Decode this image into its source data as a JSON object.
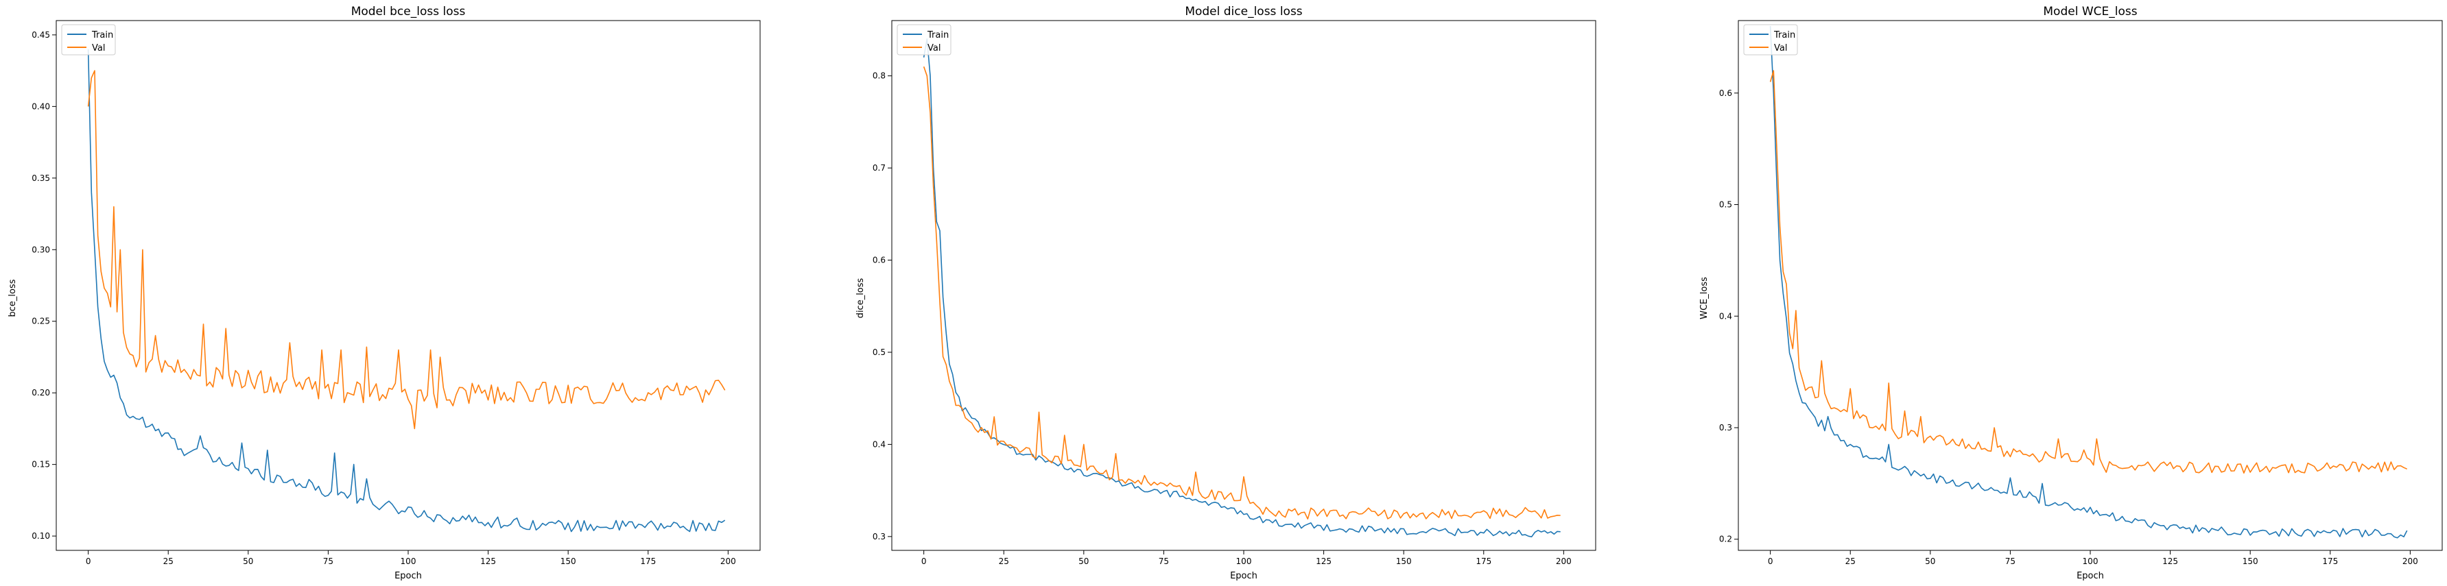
{
  "colors": {
    "train": "#1f77b4",
    "val": "#ff7f0e",
    "axis": "#000000",
    "legend_border": "#cccccc"
  },
  "chart_data": [
    {
      "type": "line",
      "title": "Model bce_loss loss",
      "xlabel": "Epoch",
      "ylabel": "bce_loss",
      "xlim": [
        -10,
        210
      ],
      "ylim": [
        0.09,
        0.46
      ],
      "xticks": [
        0,
        25,
        50,
        75,
        100,
        125,
        150,
        175,
        200
      ],
      "yticks": [
        0.1,
        0.15,
        0.2,
        0.25,
        0.3,
        0.35,
        0.4,
        0.45
      ],
      "ytick_labels": [
        "0.10",
        "0.15",
        "0.20",
        "0.25",
        "0.30",
        "0.35",
        "0.40",
        "0.45"
      ],
      "legend": {
        "placement": "upper-left",
        "entries": [
          "Train",
          "Val"
        ]
      },
      "series": [
        {
          "name": "Train",
          "anchors": [
            [
              0,
              0.44
            ],
            [
              1,
              0.34
            ],
            [
              2,
              0.3
            ],
            [
              3,
              0.26
            ],
            [
              4,
              0.235
            ],
            [
              6,
              0.213
            ],
            [
              8,
              0.21
            ],
            [
              10,
              0.2
            ],
            [
              12,
              0.185
            ],
            [
              15,
              0.183
            ],
            [
              20,
              0.175
            ],
            [
              25,
              0.168
            ],
            [
              30,
              0.16
            ],
            [
              35,
              0.16
            ],
            [
              40,
              0.152
            ],
            [
              45,
              0.15
            ],
            [
              50,
              0.145
            ],
            [
              55,
              0.143
            ],
            [
              60,
              0.14
            ],
            [
              65,
              0.138
            ],
            [
              70,
              0.135
            ],
            [
              75,
              0.13
            ],
            [
              80,
              0.13
            ],
            [
              85,
              0.125
            ],
            [
              90,
              0.122
            ],
            [
              95,
              0.12
            ],
            [
              100,
              0.118
            ],
            [
              110,
              0.113
            ],
            [
              125,
              0.11
            ],
            [
              150,
              0.107
            ],
            [
              175,
              0.107
            ],
            [
              199,
              0.107
            ]
          ],
          "noise": 0.004,
          "spikes": [
            [
              17,
              0.183
            ],
            [
              25,
              0.172
            ],
            [
              35,
              0.17
            ],
            [
              48,
              0.165
            ],
            [
              56,
              0.16
            ],
            [
              77,
              0.158
            ],
            [
              83,
              0.15
            ],
            [
              87,
              0.14
            ]
          ]
        },
        {
          "name": "Val",
          "anchors": [
            [
              0,
              0.4
            ],
            [
              1,
              0.42
            ],
            [
              2,
              0.37
            ],
            [
              3,
              0.31
            ],
            [
              4,
              0.28
            ],
            [
              6,
              0.27
            ],
            [
              8,
              0.26
            ],
            [
              10,
              0.245
            ],
            [
              12,
              0.23
            ],
            [
              15,
              0.225
            ],
            [
              20,
              0.22
            ],
            [
              25,
              0.218
            ],
            [
              30,
              0.215
            ],
            [
              40,
              0.21
            ],
            [
              50,
              0.21
            ],
            [
              60,
              0.205
            ],
            [
              70,
              0.203
            ],
            [
              80,
              0.2
            ],
            [
              90,
              0.2
            ],
            [
              100,
              0.198
            ],
            [
              110,
              0.196
            ],
            [
              125,
              0.2
            ],
            [
              150,
              0.2
            ],
            [
              175,
              0.2
            ],
            [
              199,
              0.201
            ]
          ],
          "noise": 0.008,
          "spikes": [
            [
              2,
              0.425
            ],
            [
              8,
              0.33
            ],
            [
              10,
              0.3
            ],
            [
              17,
              0.3
            ],
            [
              21,
              0.24
            ],
            [
              36,
              0.248
            ],
            [
              43,
              0.245
            ],
            [
              63,
              0.235
            ],
            [
              73,
              0.23
            ],
            [
              79,
              0.23
            ],
            [
              87,
              0.232
            ],
            [
              97,
              0.23
            ],
            [
              102,
              0.175
            ],
            [
              107,
              0.23
            ],
            [
              110,
              0.225
            ]
          ]
        }
      ]
    },
    {
      "type": "line",
      "title": "Model dice_loss loss",
      "xlabel": "Epoch",
      "ylabel": "dice_loss",
      "xlim": [
        -10,
        210
      ],
      "ylim": [
        0.285,
        0.86
      ],
      "xticks": [
        0,
        25,
        50,
        75,
        100,
        125,
        150,
        175,
        200
      ],
      "yticks": [
        0.3,
        0.4,
        0.5,
        0.6,
        0.7,
        0.8
      ],
      "ytick_labels": [
        "0.3",
        "0.4",
        "0.5",
        "0.6",
        "0.7",
        "0.8"
      ],
      "legend": {
        "placement": "upper-left",
        "entries": [
          "Train",
          "Val"
        ]
      },
      "series": [
        {
          "name": "Train",
          "anchors": [
            [
              0,
              0.82
            ],
            [
              1,
              0.84
            ],
            [
              2,
              0.8
            ],
            [
              3,
              0.7
            ],
            [
              4,
              0.64
            ],
            [
              5,
              0.63
            ],
            [
              6,
              0.56
            ],
            [
              7,
              0.52
            ],
            [
              8,
              0.49
            ],
            [
              10,
              0.46
            ],
            [
              12,
              0.44
            ],
            [
              15,
              0.43
            ],
            [
              20,
              0.41
            ],
            [
              25,
              0.4
            ],
            [
              30,
              0.39
            ],
            [
              40,
              0.38
            ],
            [
              50,
              0.37
            ],
            [
              60,
              0.36
            ],
            [
              70,
              0.35
            ],
            [
              80,
              0.345
            ],
            [
              90,
              0.335
            ],
            [
              100,
              0.325
            ],
            [
              110,
              0.315
            ],
            [
              125,
              0.31
            ],
            [
              150,
              0.305
            ],
            [
              175,
              0.305
            ],
            [
              199,
              0.302
            ]
          ],
          "noise": 0.004,
          "spikes": []
        },
        {
          "name": "Val",
          "anchors": [
            [
              0,
              0.81
            ],
            [
              1,
              0.8
            ],
            [
              2,
              0.76
            ],
            [
              3,
              0.68
            ],
            [
              4,
              0.62
            ],
            [
              5,
              0.55
            ],
            [
              6,
              0.5
            ],
            [
              7,
              0.49
            ],
            [
              8,
              0.47
            ],
            [
              10,
              0.44
            ],
            [
              12,
              0.435
            ],
            [
              15,
              0.42
            ],
            [
              20,
              0.41
            ],
            [
              25,
              0.4
            ],
            [
              30,
              0.395
            ],
            [
              40,
              0.385
            ],
            [
              50,
              0.375
            ],
            [
              60,
              0.365
            ],
            [
              70,
              0.36
            ],
            [
              80,
              0.35
            ],
            [
              90,
              0.345
            ],
            [
              100,
              0.34
            ],
            [
              105,
              0.33
            ],
            [
              110,
              0.325
            ],
            [
              125,
              0.325
            ],
            [
              150,
              0.325
            ],
            [
              175,
              0.325
            ],
            [
              199,
              0.326
            ]
          ],
          "noise": 0.006,
          "spikes": [
            [
              22,
              0.43
            ],
            [
              36,
              0.435
            ],
            [
              44,
              0.41
            ],
            [
              50,
              0.4
            ],
            [
              60,
              0.39
            ],
            [
              85,
              0.37
            ],
            [
              100,
              0.365
            ]
          ]
        }
      ]
    },
    {
      "type": "line",
      "title": "Model WCE_loss",
      "xlabel": "Epoch",
      "ylabel": "WCE_loss",
      "xlim": [
        -10,
        210
      ],
      "ylim": [
        0.19,
        0.665
      ],
      "xticks": [
        0,
        25,
        50,
        75,
        100,
        125,
        150,
        175,
        200
      ],
      "yticks": [
        0.2,
        0.3,
        0.4,
        0.5,
        0.6
      ],
      "ytick_labels": [
        "0.2",
        "0.3",
        "0.4",
        "0.5",
        "0.6"
      ],
      "legend": {
        "placement": "upper-left",
        "entries": [
          "Train",
          "Val"
        ]
      },
      "series": [
        {
          "name": "Train",
          "anchors": [
            [
              0,
              0.66
            ],
            [
              1,
              0.6
            ],
            [
              2,
              0.52
            ],
            [
              3,
              0.45
            ],
            [
              4,
              0.42
            ],
            [
              5,
              0.4
            ],
            [
              6,
              0.37
            ],
            [
              8,
              0.345
            ],
            [
              10,
              0.325
            ],
            [
              12,
              0.315
            ],
            [
              15,
              0.305
            ],
            [
              20,
              0.295
            ],
            [
              25,
              0.285
            ],
            [
              30,
              0.275
            ],
            [
              40,
              0.265
            ],
            [
              50,
              0.255
            ],
            [
              60,
              0.25
            ],
            [
              70,
              0.245
            ],
            [
              80,
              0.24
            ],
            [
              90,
              0.23
            ],
            [
              100,
              0.225
            ],
            [
              110,
              0.218
            ],
            [
              125,
              0.21
            ],
            [
              150,
              0.207
            ],
            [
              175,
              0.206
            ],
            [
              199,
              0.204
            ]
          ],
          "noise": 0.004,
          "spikes": [
            [
              18,
              0.31
            ],
            [
              37,
              0.285
            ],
            [
              75,
              0.255
            ],
            [
              85,
              0.25
            ]
          ]
        },
        {
          "name": "Val",
          "anchors": [
            [
              0,
              0.61
            ],
            [
              1,
              0.62
            ],
            [
              2,
              0.55
            ],
            [
              3,
              0.48
            ],
            [
              4,
              0.44
            ],
            [
              5,
              0.43
            ],
            [
              6,
              0.38
            ],
            [
              8,
              0.36
            ],
            [
              10,
              0.34
            ],
            [
              12,
              0.335
            ],
            [
              15,
              0.33
            ],
            [
              20,
              0.32
            ],
            [
              25,
              0.315
            ],
            [
              30,
              0.305
            ],
            [
              40,
              0.295
            ],
            [
              50,
              0.29
            ],
            [
              60,
              0.285
            ],
            [
              70,
              0.28
            ],
            [
              80,
              0.275
            ],
            [
              90,
              0.273
            ],
            [
              100,
              0.27
            ],
            [
              110,
              0.265
            ],
            [
              125,
              0.265
            ],
            [
              150,
              0.264
            ],
            [
              175,
              0.264
            ],
            [
              199,
              0.265
            ]
          ],
          "noise": 0.005,
          "spikes": [
            [
              8,
              0.405
            ],
            [
              16,
              0.36
            ],
            [
              25,
              0.335
            ],
            [
              37,
              0.34
            ],
            [
              42,
              0.315
            ],
            [
              47,
              0.31
            ],
            [
              70,
              0.3
            ],
            [
              90,
              0.29
            ],
            [
              98,
              0.28
            ],
            [
              102,
              0.29
            ],
            [
              105,
              0.26
            ]
          ]
        }
      ]
    }
  ]
}
